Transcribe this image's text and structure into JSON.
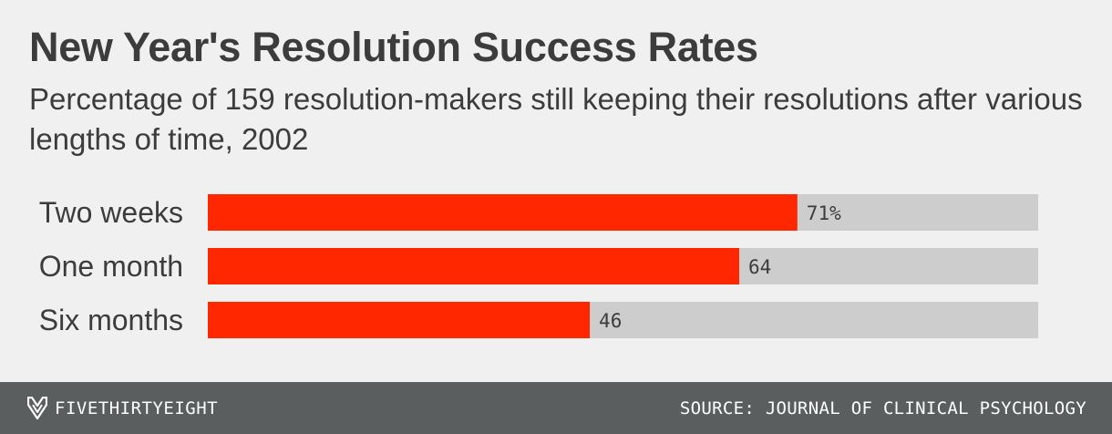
{
  "header": {
    "title": "New Year's Resolution Success Rates",
    "subtitle": "Percentage of 159 resolution-makers still keeping their resolutions after various lengths of time, 2002"
  },
  "chart_data": {
    "type": "bar",
    "orientation": "horizontal",
    "categories": [
      "Two weeks",
      "One month",
      "Six months"
    ],
    "values": [
      71,
      64,
      46
    ],
    "value_labels": [
      "71%",
      "64",
      "46"
    ],
    "xlim": [
      0,
      100
    ],
    "grid": false,
    "colors": {
      "bar": "#ff2700",
      "track": "#cdcdcd"
    }
  },
  "footer": {
    "brand": "FIVETHIRTYEIGHT",
    "brand_icon": "fox-logo-icon",
    "source": "SOURCE: JOURNAL OF CLINICAL PSYCHOLOGY"
  },
  "colors": {
    "background": "#f0f0f0",
    "text": "#3c3c3c",
    "footer": "#5b5e5f"
  }
}
